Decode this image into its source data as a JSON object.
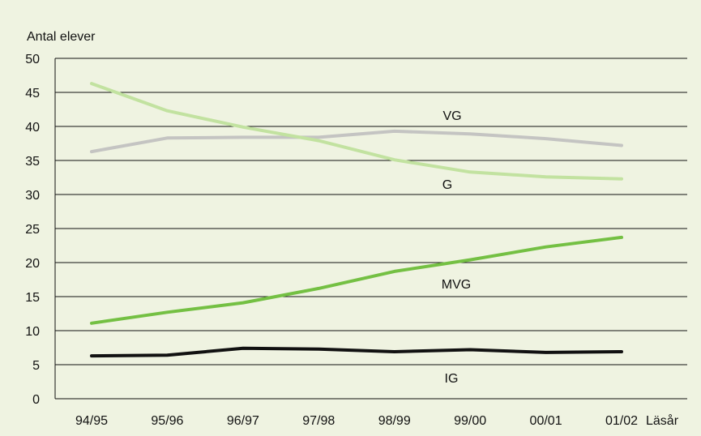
{
  "chart_data": {
    "type": "line",
    "title": "",
    "ylabel": "Antal elever",
    "xlabel": "Läsår",
    "categories": [
      "94/95",
      "95/96",
      "96/97",
      "97/98",
      "98/99",
      "99/00",
      "00/01",
      "01/02"
    ],
    "ylim": [
      0,
      50
    ],
    "yticks": [
      0,
      5,
      10,
      15,
      20,
      25,
      30,
      35,
      40,
      45,
      50
    ],
    "grid": "horizontal",
    "series": [
      {
        "name": "VG",
        "color": "#c4c4c2",
        "values": [
          36.3,
          38.3,
          38.4,
          38.4,
          39.3,
          38.9,
          38.2,
          37.2
        ]
      },
      {
        "name": "G",
        "color": "#c2e2a0",
        "values": [
          46.3,
          42.3,
          39.9,
          37.9,
          35.1,
          33.3,
          32.6,
          32.3
        ]
      },
      {
        "name": "MVG",
        "color": "#74c043",
        "values": [
          11.1,
          12.7,
          14.1,
          16.2,
          18.7,
          20.4,
          22.3,
          23.7
        ]
      },
      {
        "name": "IG",
        "color": "#111111",
        "values": [
          6.3,
          6.4,
          7.4,
          7.3,
          6.9,
          7.2,
          6.8,
          6.9
        ]
      }
    ]
  }
}
